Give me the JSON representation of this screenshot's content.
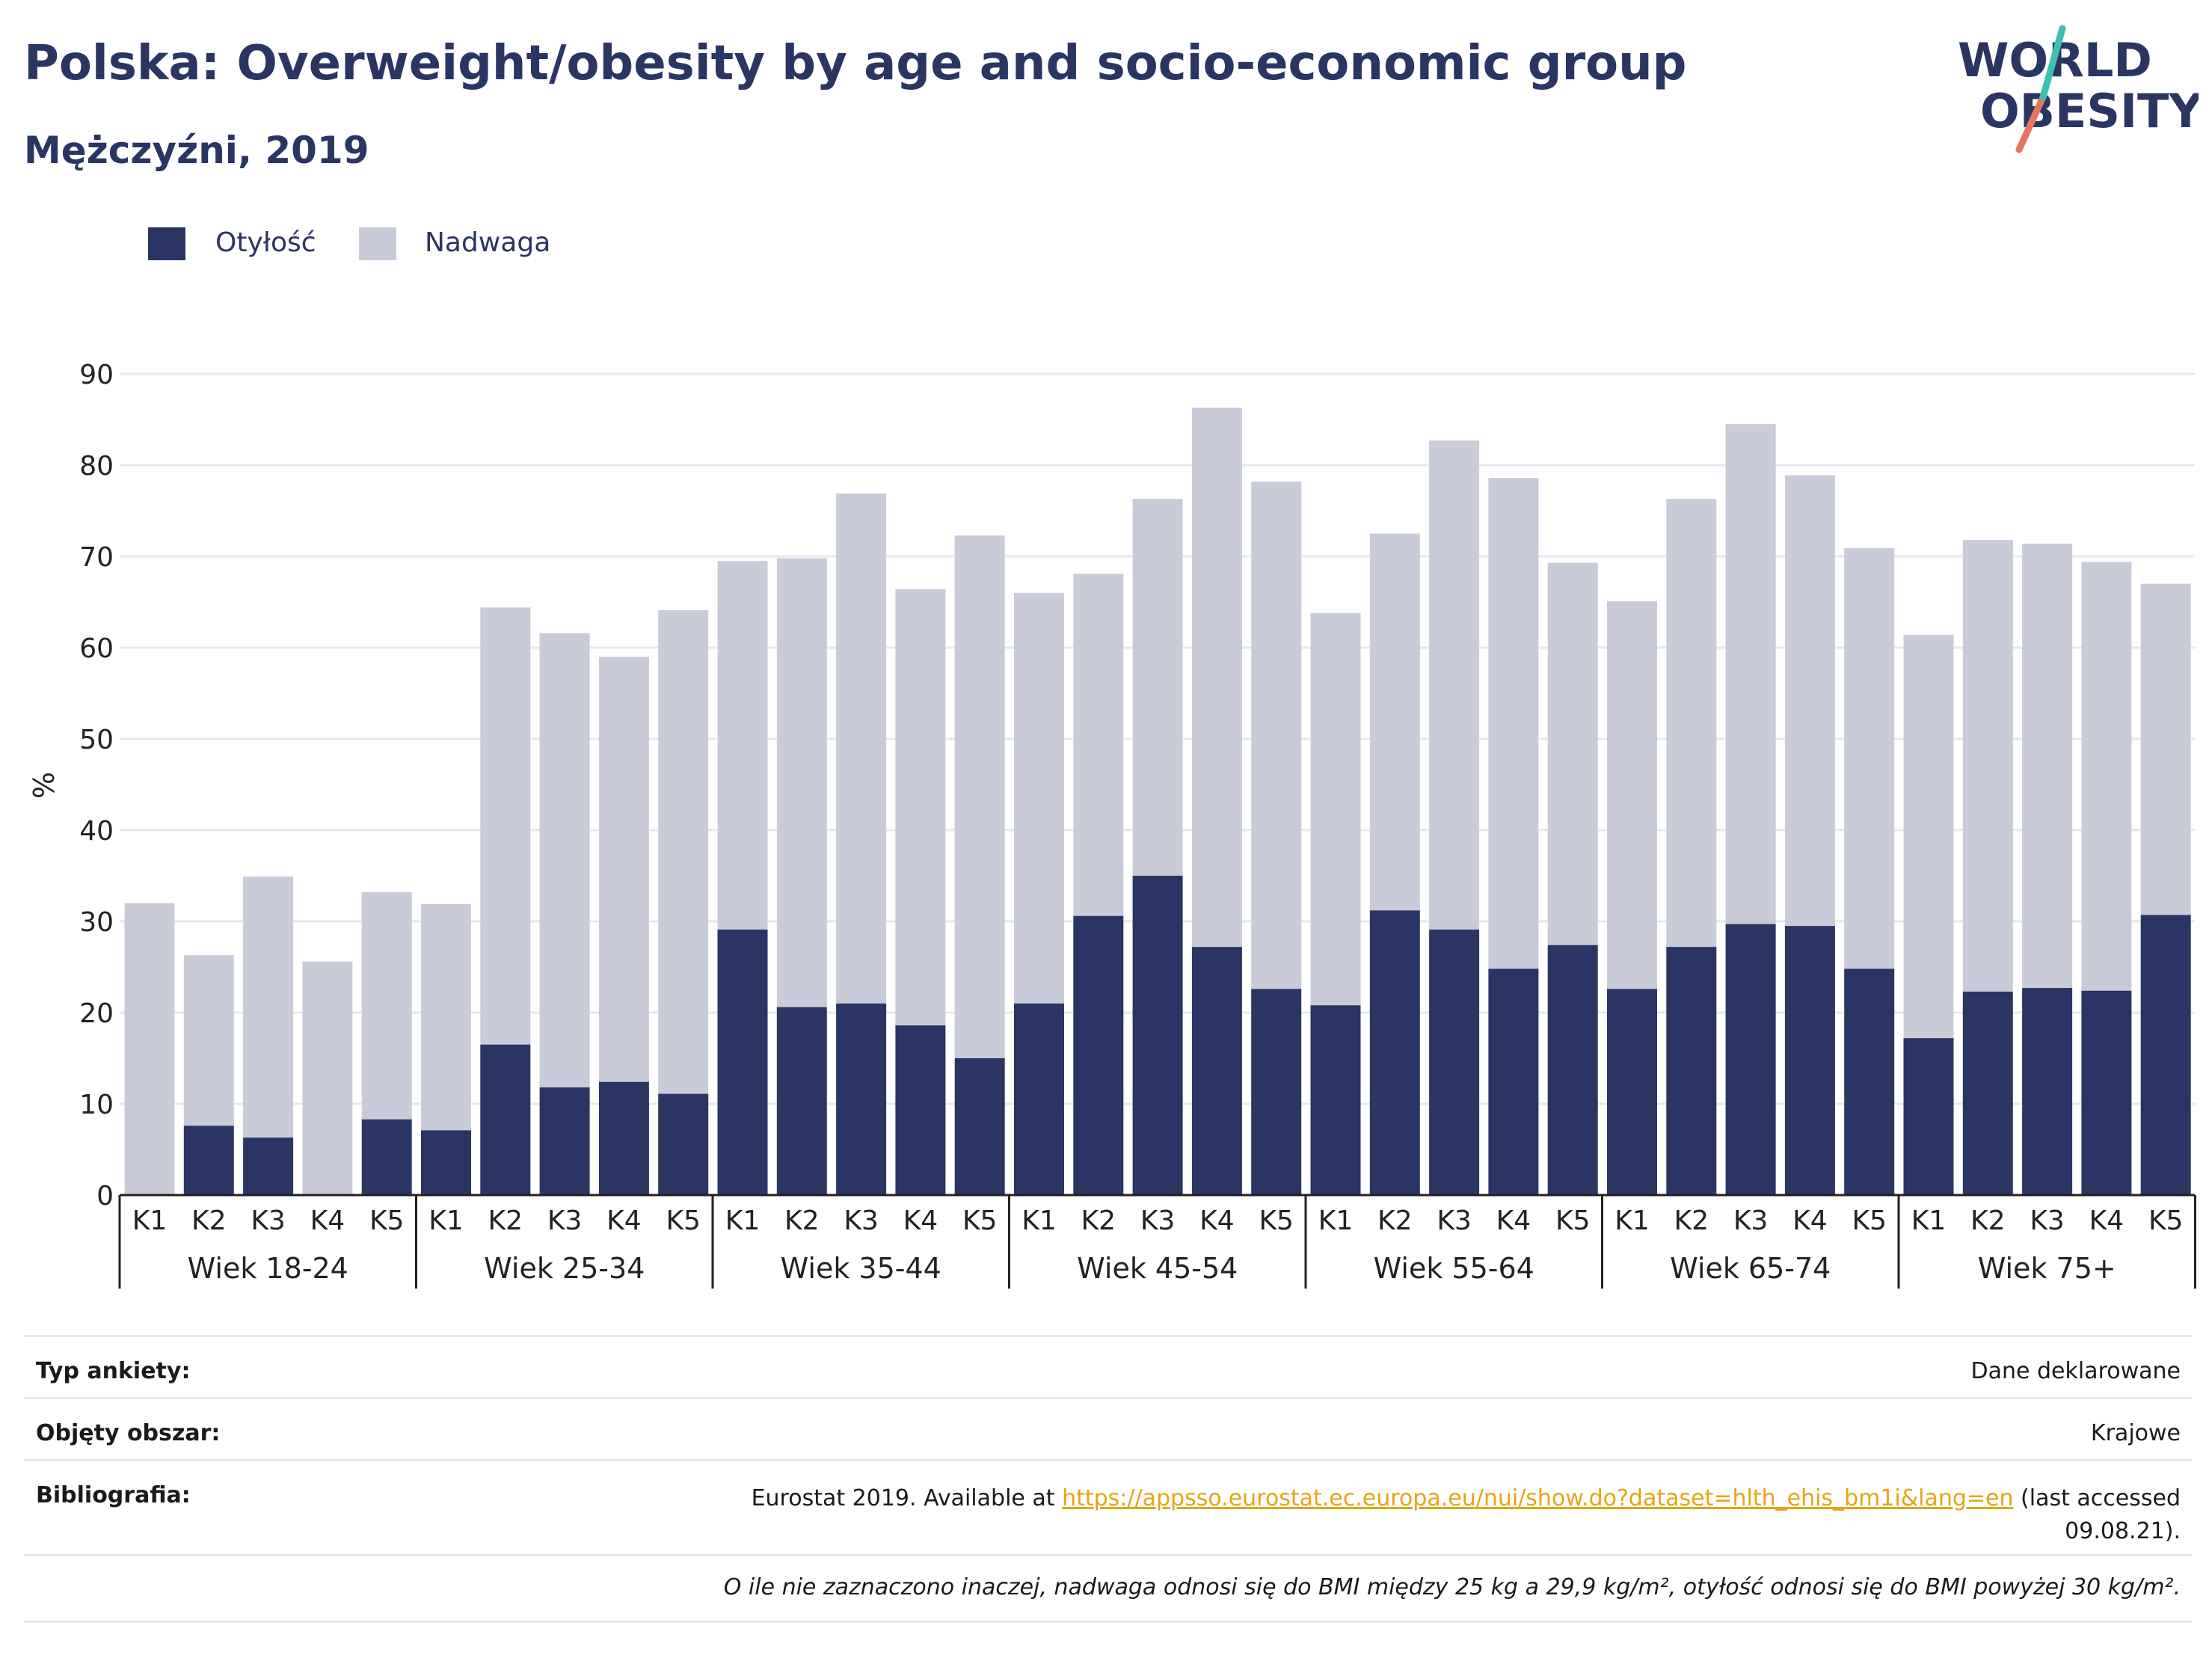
{
  "title": "Polska: Overweight/obesity by age and socio-economic group",
  "subtitle": "Mężczyźni, 2019",
  "logo": {
    "line1": "WORLD",
    "line2": "OBESITY"
  },
  "legend": [
    {
      "label": "Otyłość",
      "color": "#2a3564"
    },
    {
      "label": "Nadwaga",
      "color": "#c9ccd8"
    }
  ],
  "chart_data": {
    "type": "bar",
    "stacked": true,
    "ylabel": "%",
    "ylim": [
      0,
      90
    ],
    "yticks": [
      0,
      10,
      20,
      30,
      40,
      50,
      60,
      70,
      80,
      90
    ],
    "grid": true,
    "legend_position": "top-left",
    "groups": [
      "Wiek 18-24",
      "Wiek 25-34",
      "Wiek 35-44",
      "Wiek 45-54",
      "Wiek 55-64",
      "Wiek 65-74",
      "Wiek 75+"
    ],
    "categories": [
      "K1",
      "K2",
      "K3",
      "K4",
      "K5"
    ],
    "series": [
      {
        "name": "Otyłość",
        "color": "#2a3564",
        "values": [
          [
            0,
            7.6,
            6.3,
            0,
            8.3
          ],
          [
            7.1,
            16.5,
            11.8,
            12.4,
            11.1
          ],
          [
            29.1,
            20.6,
            21.0,
            18.6,
            15.0
          ],
          [
            21.0,
            30.6,
            35.0,
            27.2,
            22.6
          ],
          [
            20.8,
            31.2,
            29.1,
            24.8,
            27.4
          ],
          [
            22.6,
            27.2,
            29.7,
            29.5,
            24.8
          ],
          [
            17.2,
            22.3,
            22.7,
            22.4,
            30.7
          ]
        ]
      },
      {
        "name": "Nadwaga",
        "color": "#c9ccd8",
        "values": [
          [
            32.0,
            18.7,
            28.6,
            25.6,
            24.9
          ],
          [
            24.8,
            47.9,
            49.8,
            46.6,
            53.0
          ],
          [
            40.4,
            49.2,
            55.9,
            47.8,
            57.3
          ],
          [
            45.0,
            37.5,
            41.3,
            59.1,
            55.6
          ],
          [
            43.0,
            41.3,
            53.6,
            53.8,
            41.9
          ],
          [
            42.5,
            49.1,
            54.8,
            49.4,
            46.1
          ],
          [
            44.2,
            49.5,
            48.7,
            47.0,
            36.3
          ]
        ]
      }
    ]
  },
  "footer": {
    "survey_label": "Typ ankiety:",
    "survey_value": "Dane deklarowane",
    "area_label": "Objęty obszar:",
    "area_value": "Krajowe",
    "bib_label": "Bibliografia:",
    "bib_prefix": "Eurostat 2019. Available at ",
    "bib_link": "https://appsso.eurostat.ec.europa.eu/nui/show.do?dataset=hlth_ehis_bm1i&lang=en",
    "bib_suffix": " (last accessed",
    "bib_date": "09.08.21).",
    "note": "O ile nie zaznaczono inaczej, nadwaga odnosi się do BMI między 25 kg a 29,9 kg/m², otyłość odnosi się do BMI powyżej 30 kg/m²."
  }
}
